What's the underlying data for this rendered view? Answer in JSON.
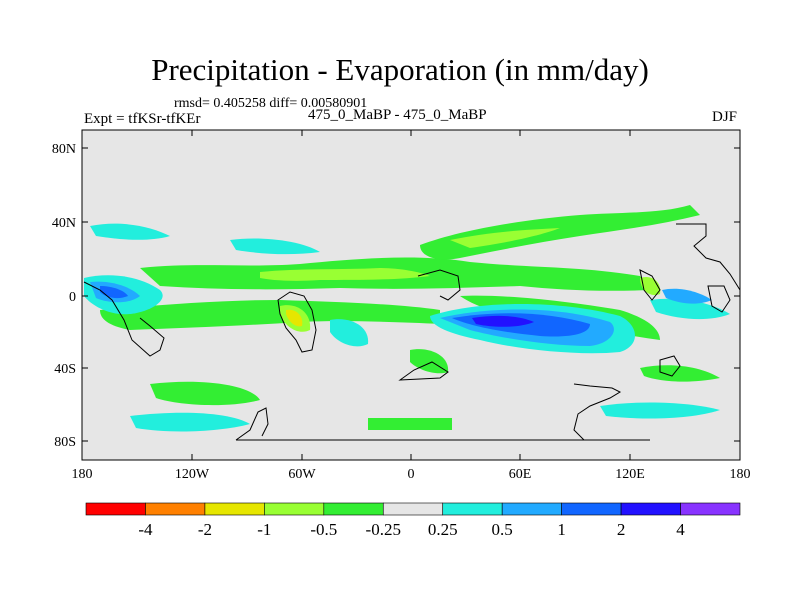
{
  "title": "Precipitation - Evaporation (in mm/day)",
  "stats": "rmsd= 0.405258 diff= 0.00580901",
  "expt": "Expt = tfKSr-tfKEr",
  "subtitle": "475_0_MaBP - 475_0_MaBP",
  "season": "DJF",
  "lat_ticks": [
    "80N",
    "40N",
    "0",
    "40S",
    "80S"
  ],
  "lon_ticks": [
    "180",
    "120W",
    "60W",
    "0",
    "60E",
    "120E",
    "180"
  ],
  "colorbar": {
    "labels": [
      "-4",
      "-2",
      "-1",
      "-0.5",
      "-0.25",
      "0.25",
      "0.5",
      "1",
      "2",
      "4"
    ],
    "colors": [
      "#ff0000",
      "#ff8000",
      "#e6e600",
      "#99ff33",
      "#33ee33",
      "#e6e6e6",
      "#22eedd",
      "#22aaff",
      "#1166ff",
      "#2211ff",
      "#8833ff"
    ]
  },
  "fill_colors": {
    "background": "#e6e6e6",
    "green": "#33ee33",
    "lightgreen": "#99ff33",
    "yellow": "#e6e600",
    "cyan": "#22eedd",
    "lightblue": "#22aaff",
    "blue": "#1166ff",
    "darkblue": "#2211ff"
  }
}
